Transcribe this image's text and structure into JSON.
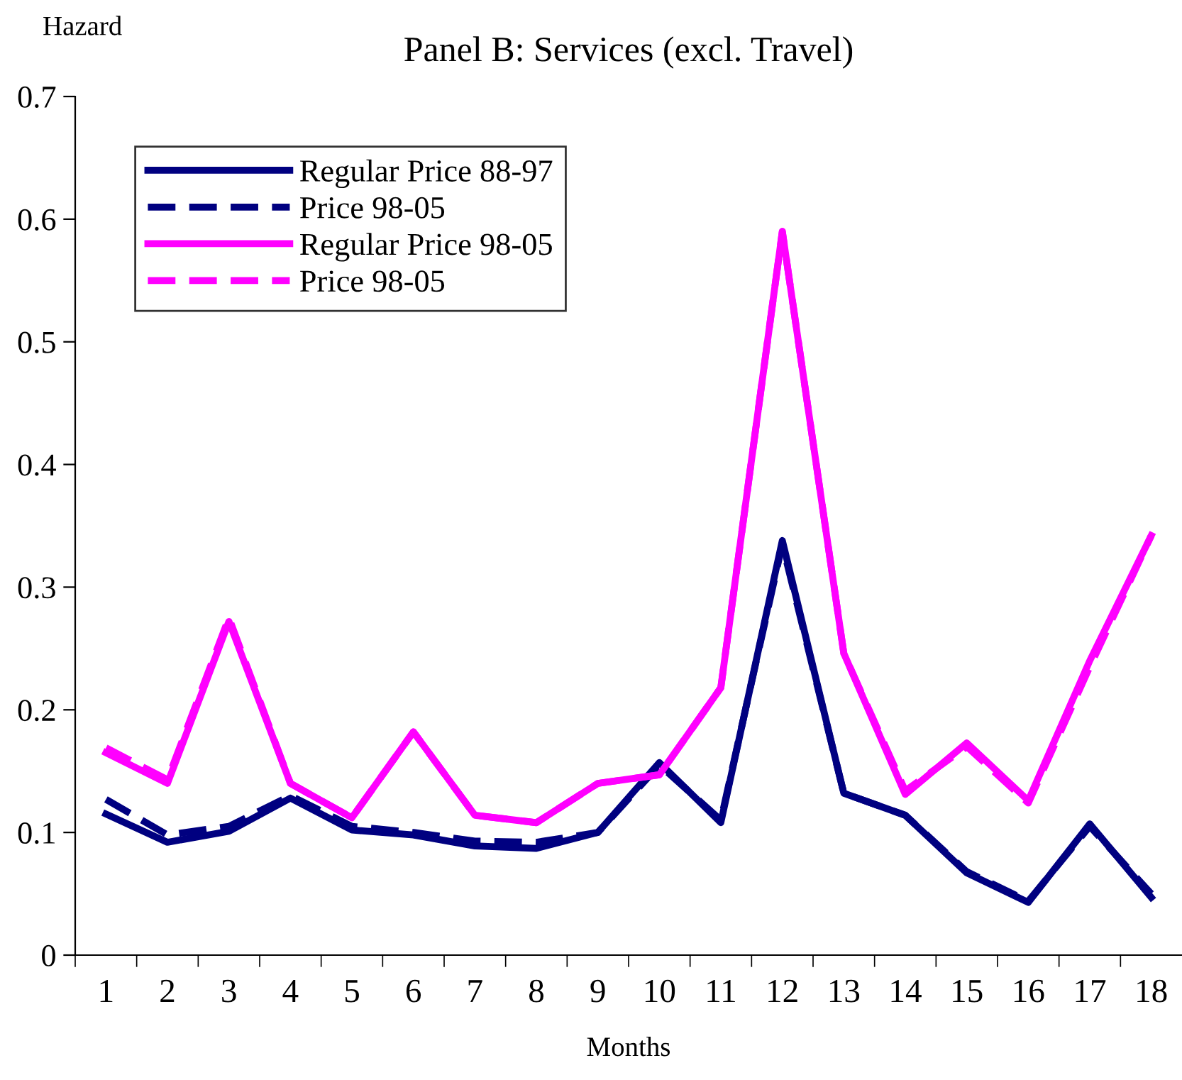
{
  "chart_data": {
    "type": "line",
    "title": "Panel B: Services (excl. Travel)",
    "xlabel": "Months",
    "ylabel": "Hazard",
    "categories": [
      "1",
      "2",
      "3",
      "4",
      "5",
      "6",
      "7",
      "8",
      "9",
      "10",
      "11",
      "12",
      "13",
      "14",
      "15",
      "16",
      "17",
      "18"
    ],
    "ylim": [
      0,
      0.7
    ],
    "yticks": [
      {
        "value": 0,
        "label": "0"
      },
      {
        "value": 0.1,
        "label": "0.1"
      },
      {
        "value": 0.2,
        "label": "0.2"
      },
      {
        "value": 0.3,
        "label": "0.3"
      },
      {
        "value": 0.4,
        "label": "0.4"
      },
      {
        "value": 0.5,
        "label": "0.5"
      },
      {
        "value": 0.6,
        "label": "0.6"
      },
      {
        "value": 0.7,
        "label": "0.7"
      }
    ],
    "grid": false,
    "legend": "top left",
    "marker": "none",
    "series": [
      {
        "name": "Regular Price 88-97",
        "color": "#000080",
        "line_style": "solid",
        "values": [
          0.115,
          0.092,
          0.101,
          0.128,
          0.102,
          0.098,
          0.089,
          0.087,
          0.1,
          0.157,
          0.108,
          0.338,
          0.132,
          0.114,
          0.067,
          0.043,
          0.107,
          0.047
        ]
      },
      {
        "name": "Price 98-05",
        "color": "#000080",
        "line_style": "dashed",
        "values": [
          0.127,
          0.098,
          0.105,
          0.13,
          0.105,
          0.1,
          0.093,
          0.092,
          0.1,
          0.155,
          0.11,
          0.335,
          0.132,
          0.114,
          0.068,
          0.044,
          0.105,
          0.05
        ]
      },
      {
        "name": "Regular Price 98-05",
        "color": "#ff00ff",
        "line_style": "solid",
        "values": [
          0.165,
          0.14,
          0.272,
          0.14,
          0.112,
          0.182,
          0.114,
          0.108,
          0.14,
          0.147,
          0.218,
          0.59,
          0.246,
          0.131,
          0.173,
          0.126,
          0.24,
          0.342
        ]
      },
      {
        "name": "Price 98-05",
        "color": "#ff00ff",
        "line_style": "dashed",
        "values": [
          0.169,
          0.143,
          0.275,
          0.14,
          0.112,
          0.182,
          0.114,
          0.108,
          0.14,
          0.147,
          0.218,
          0.59,
          0.246,
          0.134,
          0.17,
          0.124,
          0.235,
          0.342
        ]
      }
    ]
  }
}
